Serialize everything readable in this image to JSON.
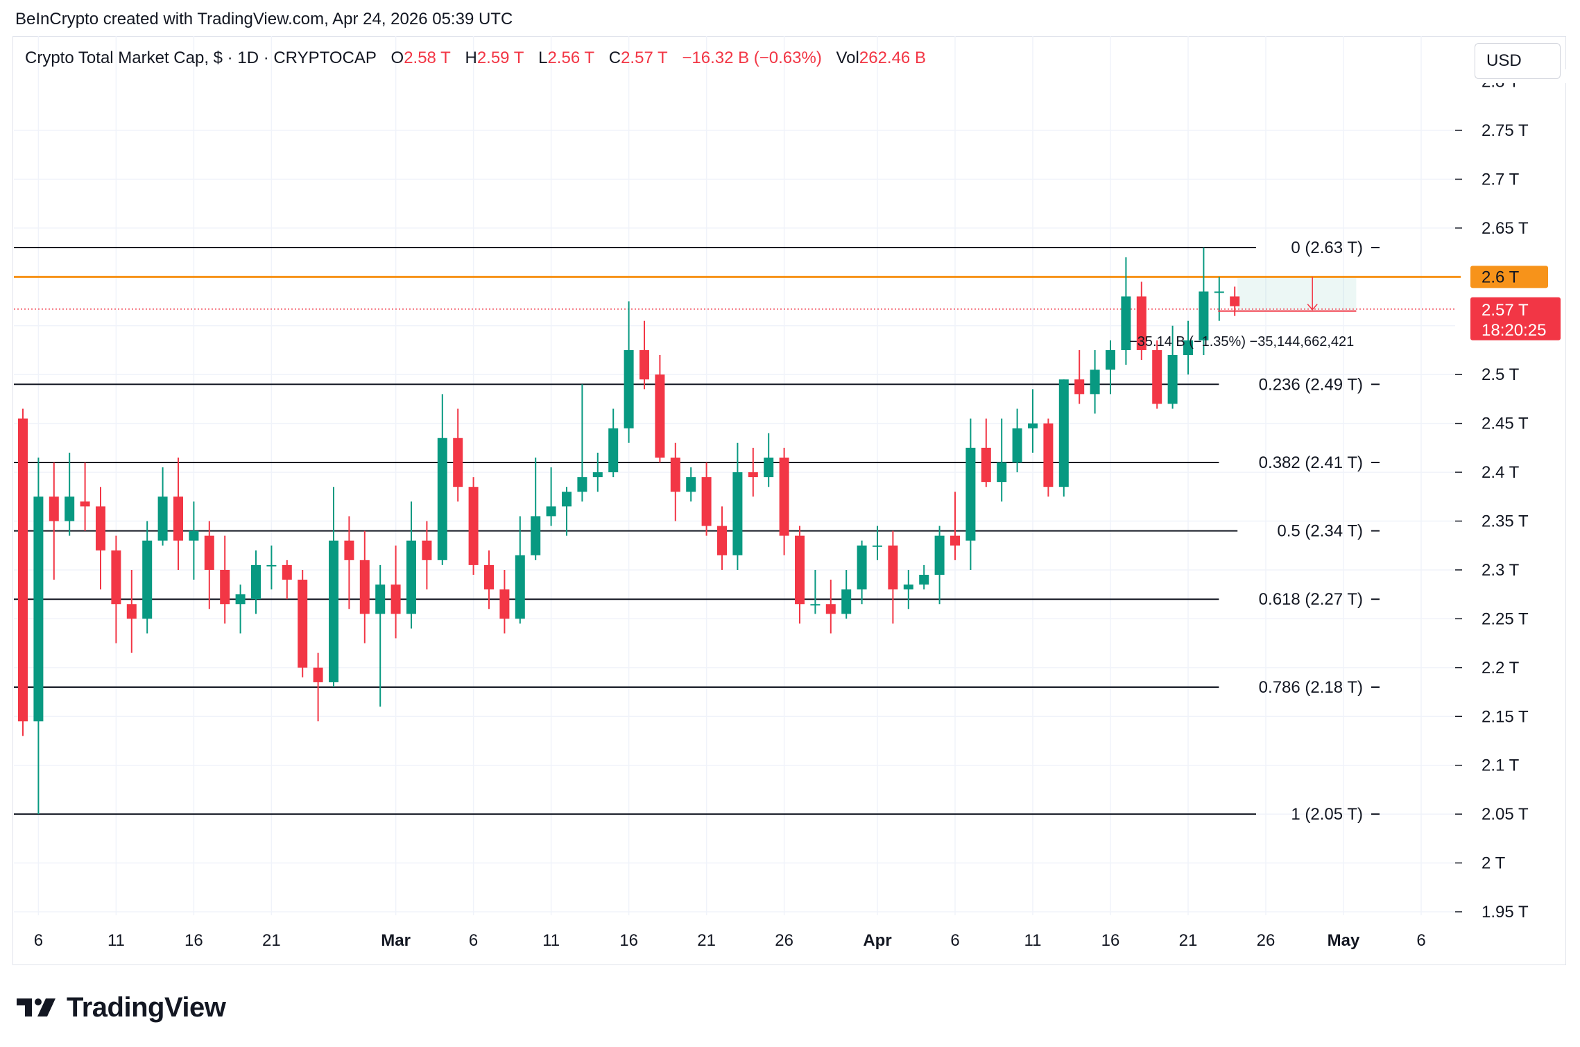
{
  "header": {
    "credit": "BeInCrypto created with TradingView.com, Apr 24, 2026 05:39 UTC"
  },
  "legend": {
    "symbol": "Crypto Total Market Cap, $ · 1D · CRYPTOCAP",
    "o_label": "O",
    "o_value": "2.58 T",
    "h_label": "H",
    "h_value": "2.59 T",
    "l_label": "L",
    "l_value": "2.56 T",
    "c_label": "C",
    "c_value": "2.57 T",
    "change": "−16.32 B (−0.63%)",
    "vol_label": "Vol",
    "vol_value": "262.46 B"
  },
  "currency_button": "USD",
  "brand": {
    "logo_text": "TradingView"
  },
  "colors": {
    "up": "#089981",
    "down": "#f23645",
    "fib_line": "#131722",
    "orange": "#f7931a",
    "grid": "#f0f3fa",
    "axis_text": "#131722"
  },
  "chart_data": {
    "type": "candlestick",
    "title": "Crypto Total Market Cap, $ · 1D · CRYPTOCAP",
    "ylim": [
      1.94,
      2.82
    ],
    "y_ticks": [
      1.95,
      2.0,
      2.05,
      2.1,
      2.15,
      2.2,
      2.25,
      2.3,
      2.35,
      2.4,
      2.45,
      2.5,
      2.65,
      2.7,
      2.75
    ],
    "y_tick_suffix": " T",
    "y_partial_top_label": "2.8 T",
    "x_start_date": "2026-02-05",
    "x_end_date": "2026-05-08",
    "x_ticks": [
      {
        "date": "2026-02-06",
        "label": "6"
      },
      {
        "date": "2026-02-11",
        "label": "11"
      },
      {
        "date": "2026-02-16",
        "label": "16"
      },
      {
        "date": "2026-02-21",
        "label": "21"
      },
      {
        "date": "2026-03-01",
        "label": "Mar"
      },
      {
        "date": "2026-03-06",
        "label": "6"
      },
      {
        "date": "2026-03-11",
        "label": "11"
      },
      {
        "date": "2026-03-16",
        "label": "16"
      },
      {
        "date": "2026-03-21",
        "label": "21"
      },
      {
        "date": "2026-03-26",
        "label": "26"
      },
      {
        "date": "2026-04-01",
        "label": "Apr"
      },
      {
        "date": "2026-04-06",
        "label": "6"
      },
      {
        "date": "2026-04-11",
        "label": "11"
      },
      {
        "date": "2026-04-16",
        "label": "16"
      },
      {
        "date": "2026-04-21",
        "label": "21"
      },
      {
        "date": "2026-04-26",
        "label": "26"
      },
      {
        "date": "2026-05-01",
        "label": "May"
      },
      {
        "date": "2026-05-06",
        "label": "6"
      }
    ],
    "fib_levels": [
      {
        "label": "0 (2.63 T)",
        "value": 2.63
      },
      {
        "label": "0.236 (2.49 T)",
        "value": 2.49
      },
      {
        "label": "0.382 (2.41 T)",
        "value": 2.41
      },
      {
        "label": "0.5 (2.34 T)",
        "value": 2.34
      },
      {
        "label": "0.618 (2.27 T)",
        "value": 2.27
      },
      {
        "label": "0.786 (2.18 T)",
        "value": 2.18
      },
      {
        "label": "1 (2.05 T)",
        "value": 2.05
      }
    ],
    "horizontal_line": {
      "value": 2.6,
      "label": "2.6 T"
    },
    "current_price": {
      "value": 2.567,
      "label": "2.57 T",
      "countdown": "18:20:25"
    },
    "projection": {
      "label": "−35.14 B (−1.35%) −35,144,662,421",
      "from_value": 2.6,
      "to_value": 2.565,
      "start_date": "2026-04-24",
      "end_date": "2026-05-02"
    },
    "candles": [
      {
        "date": "2026-02-05",
        "o": 2.455,
        "h": 2.465,
        "l": 2.13,
        "c": 2.145
      },
      {
        "date": "2026-02-06",
        "o": 2.145,
        "h": 2.415,
        "l": 2.05,
        "c": 2.375
      },
      {
        "date": "2026-02-07",
        "o": 2.375,
        "h": 2.41,
        "l": 2.29,
        "c": 2.35
      },
      {
        "date": "2026-02-08",
        "o": 2.35,
        "h": 2.42,
        "l": 2.335,
        "c": 2.375
      },
      {
        "date": "2026-02-09",
        "o": 2.37,
        "h": 2.41,
        "l": 2.34,
        "c": 2.365
      },
      {
        "date": "2026-02-10",
        "o": 2.365,
        "h": 2.385,
        "l": 2.28,
        "c": 2.32
      },
      {
        "date": "2026-02-11",
        "o": 2.32,
        "h": 2.335,
        "l": 2.225,
        "c": 2.265
      },
      {
        "date": "2026-02-12",
        "o": 2.265,
        "h": 2.3,
        "l": 2.215,
        "c": 2.25
      },
      {
        "date": "2026-02-13",
        "o": 2.25,
        "h": 2.35,
        "l": 2.235,
        "c": 2.33
      },
      {
        "date": "2026-02-14",
        "o": 2.33,
        "h": 2.405,
        "l": 2.325,
        "c": 2.375
      },
      {
        "date": "2026-02-15",
        "o": 2.375,
        "h": 2.415,
        "l": 2.3,
        "c": 2.33
      },
      {
        "date": "2026-02-16",
        "o": 2.33,
        "h": 2.37,
        "l": 2.29,
        "c": 2.34
      },
      {
        "date": "2026-02-17",
        "o": 2.335,
        "h": 2.35,
        "l": 2.26,
        "c": 2.3
      },
      {
        "date": "2026-02-18",
        "o": 2.3,
        "h": 2.335,
        "l": 2.245,
        "c": 2.265
      },
      {
        "date": "2026-02-19",
        "o": 2.265,
        "h": 2.285,
        "l": 2.235,
        "c": 2.275
      },
      {
        "date": "2026-02-20",
        "o": 2.27,
        "h": 2.32,
        "l": 2.255,
        "c": 2.305
      },
      {
        "date": "2026-02-21",
        "o": 2.305,
        "h": 2.325,
        "l": 2.28,
        "c": 2.305
      },
      {
        "date": "2026-02-22",
        "o": 2.305,
        "h": 2.31,
        "l": 2.27,
        "c": 2.29
      },
      {
        "date": "2026-02-23",
        "o": 2.29,
        "h": 2.3,
        "l": 2.19,
        "c": 2.2
      },
      {
        "date": "2026-02-24",
        "o": 2.2,
        "h": 2.215,
        "l": 2.145,
        "c": 2.185
      },
      {
        "date": "2026-02-25",
        "o": 2.185,
        "h": 2.385,
        "l": 2.18,
        "c": 2.33
      },
      {
        "date": "2026-02-26",
        "o": 2.33,
        "h": 2.355,
        "l": 2.26,
        "c": 2.31
      },
      {
        "date": "2026-02-27",
        "o": 2.31,
        "h": 2.34,
        "l": 2.225,
        "c": 2.255
      },
      {
        "date": "2026-02-28",
        "o": 2.255,
        "h": 2.305,
        "l": 2.16,
        "c": 2.285
      },
      {
        "date": "2026-03-01",
        "o": 2.285,
        "h": 2.325,
        "l": 2.23,
        "c": 2.255
      },
      {
        "date": "2026-03-02",
        "o": 2.255,
        "h": 2.37,
        "l": 2.24,
        "c": 2.33
      },
      {
        "date": "2026-03-03",
        "o": 2.33,
        "h": 2.35,
        "l": 2.28,
        "c": 2.31
      },
      {
        "date": "2026-03-04",
        "o": 2.31,
        "h": 2.48,
        "l": 2.305,
        "c": 2.435
      },
      {
        "date": "2026-03-05",
        "o": 2.435,
        "h": 2.465,
        "l": 2.37,
        "c": 2.385
      },
      {
        "date": "2026-03-06",
        "o": 2.385,
        "h": 2.395,
        "l": 2.295,
        "c": 2.305
      },
      {
        "date": "2026-03-07",
        "o": 2.305,
        "h": 2.32,
        "l": 2.26,
        "c": 2.28
      },
      {
        "date": "2026-03-08",
        "o": 2.28,
        "h": 2.3,
        "l": 2.235,
        "c": 2.25
      },
      {
        "date": "2026-03-09",
        "o": 2.25,
        "h": 2.355,
        "l": 2.245,
        "c": 2.315
      },
      {
        "date": "2026-03-10",
        "o": 2.315,
        "h": 2.415,
        "l": 2.31,
        "c": 2.355
      },
      {
        "date": "2026-03-11",
        "o": 2.355,
        "h": 2.405,
        "l": 2.345,
        "c": 2.365
      },
      {
        "date": "2026-03-12",
        "o": 2.365,
        "h": 2.385,
        "l": 2.335,
        "c": 2.38
      },
      {
        "date": "2026-03-13",
        "o": 2.38,
        "h": 2.49,
        "l": 2.37,
        "c": 2.395
      },
      {
        "date": "2026-03-14",
        "o": 2.395,
        "h": 2.42,
        "l": 2.38,
        "c": 2.4
      },
      {
        "date": "2026-03-15",
        "o": 2.4,
        "h": 2.465,
        "l": 2.395,
        "c": 2.445
      },
      {
        "date": "2026-03-16",
        "o": 2.445,
        "h": 2.575,
        "l": 2.43,
        "c": 2.525
      },
      {
        "date": "2026-03-17",
        "o": 2.525,
        "h": 2.555,
        "l": 2.485,
        "c": 2.495
      },
      {
        "date": "2026-03-18",
        "o": 2.5,
        "h": 2.52,
        "l": 2.41,
        "c": 2.415
      },
      {
        "date": "2026-03-19",
        "o": 2.415,
        "h": 2.43,
        "l": 2.35,
        "c": 2.38
      },
      {
        "date": "2026-03-20",
        "o": 2.38,
        "h": 2.405,
        "l": 2.37,
        "c": 2.395
      },
      {
        "date": "2026-03-21",
        "o": 2.395,
        "h": 2.41,
        "l": 2.335,
        "c": 2.345
      },
      {
        "date": "2026-03-22",
        "o": 2.345,
        "h": 2.365,
        "l": 2.3,
        "c": 2.315
      },
      {
        "date": "2026-03-23",
        "o": 2.315,
        "h": 2.43,
        "l": 2.3,
        "c": 2.4
      },
      {
        "date": "2026-03-24",
        "o": 2.4,
        "h": 2.425,
        "l": 2.375,
        "c": 2.395
      },
      {
        "date": "2026-03-25",
        "o": 2.395,
        "h": 2.44,
        "l": 2.385,
        "c": 2.415
      },
      {
        "date": "2026-03-26",
        "o": 2.415,
        "h": 2.425,
        "l": 2.315,
        "c": 2.335
      },
      {
        "date": "2026-03-27",
        "o": 2.335,
        "h": 2.345,
        "l": 2.245,
        "c": 2.265
      },
      {
        "date": "2026-03-28",
        "o": 2.265,
        "h": 2.3,
        "l": 2.255,
        "c": 2.265
      },
      {
        "date": "2026-03-29",
        "o": 2.265,
        "h": 2.29,
        "l": 2.235,
        "c": 2.255
      },
      {
        "date": "2026-03-30",
        "o": 2.255,
        "h": 2.3,
        "l": 2.25,
        "c": 2.28
      },
      {
        "date": "2026-03-31",
        "o": 2.28,
        "h": 2.33,
        "l": 2.265,
        "c": 2.325
      },
      {
        "date": "2026-04-01",
        "o": 2.325,
        "h": 2.345,
        "l": 2.31,
        "c": 2.325
      },
      {
        "date": "2026-04-02",
        "o": 2.325,
        "h": 2.34,
        "l": 2.245,
        "c": 2.28
      },
      {
        "date": "2026-04-03",
        "o": 2.28,
        "h": 2.3,
        "l": 2.26,
        "c": 2.285
      },
      {
        "date": "2026-04-04",
        "o": 2.285,
        "h": 2.305,
        "l": 2.28,
        "c": 2.295
      },
      {
        "date": "2026-04-05",
        "o": 2.295,
        "h": 2.345,
        "l": 2.265,
        "c": 2.335
      },
      {
        "date": "2026-04-06",
        "o": 2.335,
        "h": 2.38,
        "l": 2.31,
        "c": 2.325
      },
      {
        "date": "2026-04-07",
        "o": 2.33,
        "h": 2.455,
        "l": 2.3,
        "c": 2.425
      },
      {
        "date": "2026-04-08",
        "o": 2.425,
        "h": 2.455,
        "l": 2.385,
        "c": 2.39
      },
      {
        "date": "2026-04-09",
        "o": 2.39,
        "h": 2.455,
        "l": 2.37,
        "c": 2.41
      },
      {
        "date": "2026-04-10",
        "o": 2.41,
        "h": 2.465,
        "l": 2.4,
        "c": 2.445
      },
      {
        "date": "2026-04-11",
        "o": 2.445,
        "h": 2.485,
        "l": 2.42,
        "c": 2.45
      },
      {
        "date": "2026-04-12",
        "o": 2.45,
        "h": 2.455,
        "l": 2.375,
        "c": 2.385
      },
      {
        "date": "2026-04-13",
        "o": 2.385,
        "h": 2.495,
        "l": 2.375,
        "c": 2.495
      },
      {
        "date": "2026-04-14",
        "o": 2.495,
        "h": 2.525,
        "l": 2.47,
        "c": 2.48
      },
      {
        "date": "2026-04-15",
        "o": 2.48,
        "h": 2.525,
        "l": 2.46,
        "c": 2.505
      },
      {
        "date": "2026-04-16",
        "o": 2.505,
        "h": 2.535,
        "l": 2.48,
        "c": 2.525
      },
      {
        "date": "2026-04-17",
        "o": 2.525,
        "h": 2.62,
        "l": 2.51,
        "c": 2.58
      },
      {
        "date": "2026-04-18",
        "o": 2.58,
        "h": 2.595,
        "l": 2.515,
        "c": 2.525
      },
      {
        "date": "2026-04-19",
        "o": 2.525,
        "h": 2.535,
        "l": 2.465,
        "c": 2.47
      },
      {
        "date": "2026-04-20",
        "o": 2.47,
        "h": 2.55,
        "l": 2.465,
        "c": 2.52
      },
      {
        "date": "2026-04-21",
        "o": 2.52,
        "h": 2.555,
        "l": 2.5,
        "c": 2.535
      },
      {
        "date": "2026-04-22",
        "o": 2.535,
        "h": 2.63,
        "l": 2.52,
        "c": 2.585
      },
      {
        "date": "2026-04-23",
        "o": 2.585,
        "h": 2.6,
        "l": 2.555,
        "c": 2.585
      },
      {
        "date": "2026-04-24",
        "o": 2.58,
        "h": 2.59,
        "l": 2.56,
        "c": 2.57
      }
    ]
  }
}
